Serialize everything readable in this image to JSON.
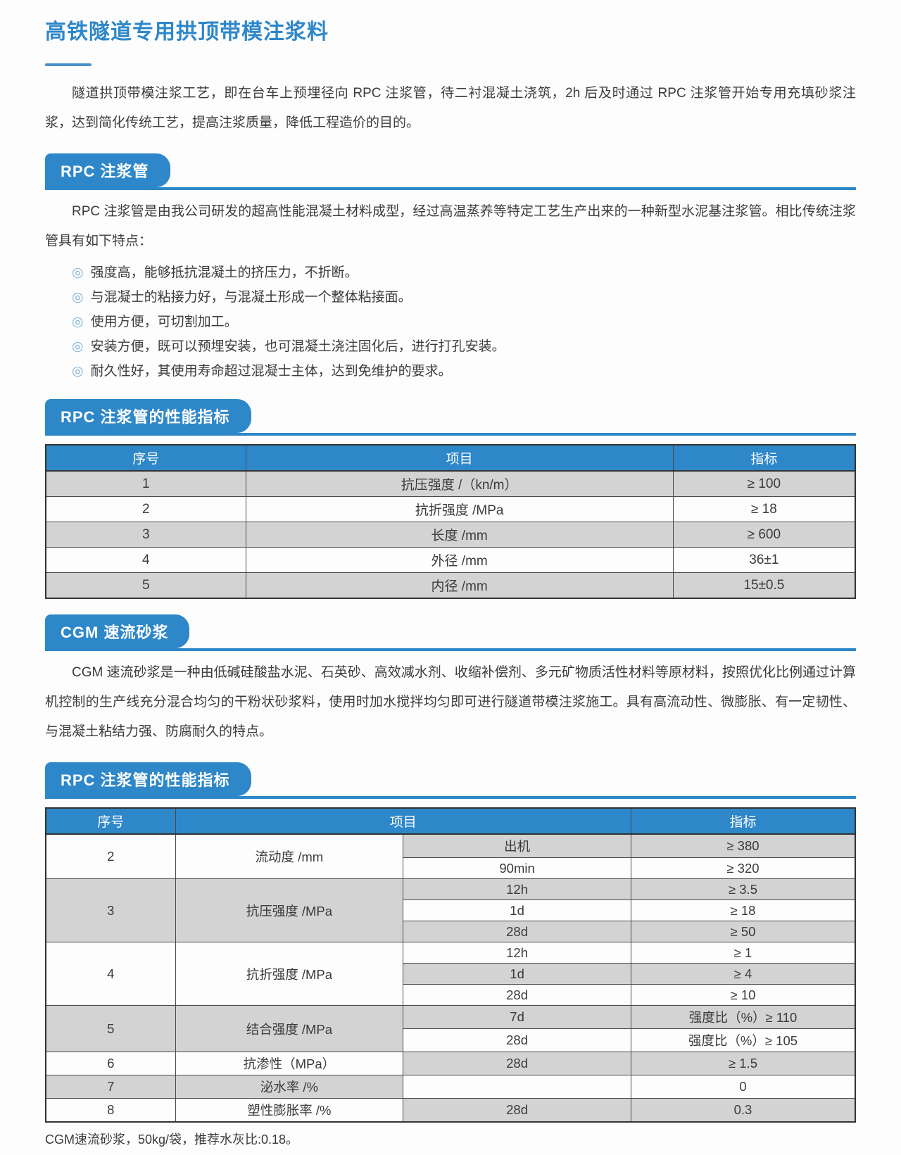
{
  "colors": {
    "accent_blue": "#2e87c9",
    "row_gray": "#d3d3d3",
    "text_color": "#3b3b3b",
    "bullet_color": "#7fb2d9"
  },
  "page": {
    "title": "高铁隧道专用拱顶带模注浆料",
    "intro": "隧道拱顶带模注浆工艺，即在台车上预埋径向 RPC 注浆管，待二衬混凝土浇筑，2h 后及时通过 RPC 注浆管开始专用充填砂浆注浆，达到简化传统工艺，提高注浆质量，降低工程造价的目的。",
    "footnote": "CGM速流砂浆，50kg/袋，推荐水灰比:0.18。"
  },
  "rpc_pipe": {
    "banner": "RPC 注浆管",
    "intro": "RPC 注浆管是由我公司研发的超高性能混凝土材料成型，经过高温蒸养等特定工艺生产出来的一种新型水泥基注浆管。相比传统注浆管具有如下特点：",
    "bullet_icon": "◎",
    "bullets": [
      "强度高，能够抵抗混凝土的挤压力，不折断。",
      "与混凝士的粘接力好，与混凝土形成一个整体粘接面。",
      "使用方便，可切割加工。",
      "安装方便，既可以预埋安装，也可混凝土浇注固化后，进行打孔安装。",
      "耐久性好，其使用寿命超过混凝士主体，达到免维护的要求。"
    ]
  },
  "rpc_table": {
    "banner": "RPC 注浆管的性能指标",
    "headers": [
      "序号",
      "项目",
      "指标"
    ],
    "rows": [
      [
        "1",
        "抗压强度 /（kn/m）",
        "≥ 100"
      ],
      [
        "2",
        "抗折强度 /MPa",
        "≥ 18"
      ],
      [
        "3",
        "长度 /mm",
        "≥ 600"
      ],
      [
        "4",
        "外径 /mm",
        "36±1"
      ],
      [
        "5",
        "内径 /mm",
        "15±0.5"
      ]
    ]
  },
  "cgm": {
    "banner": "CGM 速流砂浆",
    "intro": "CGM 速流砂浆是一种由低碱硅酸盐水泥、石英砂、高效减水剂、收缩补偿剂、多元矿物质活性材料等原材料，按照优化比例通过计算机控制的生产线充分混合均匀的干粉状砂浆料，使用时加水搅拌均匀即可进行隧道带模注浆施工。具有高流动性、微膨胀、有一定韧性、与混凝土粘结力强、防腐耐久的特点。"
  },
  "cgm_table": {
    "banner": "RPC 注浆管的性能指标",
    "headers": [
      "序号",
      "项目",
      "指标"
    ],
    "groups": [
      {
        "no": "2",
        "item": "流动度 /mm",
        "rows": [
          {
            "cond": "出机",
            "value": "≥ 380"
          },
          {
            "cond": "90min",
            "value": "≥ 320"
          }
        ]
      },
      {
        "no": "3",
        "item": "抗压强度 /MPa",
        "rows": [
          {
            "cond": "12h",
            "value": "≥ 3.5"
          },
          {
            "cond": "1d",
            "value": "≥ 18"
          },
          {
            "cond": "28d",
            "value": "≥ 50"
          }
        ]
      },
      {
        "no": "4",
        "item": "抗折强度 /MPa",
        "rows": [
          {
            "cond": "12h",
            "value": "≥ 1"
          },
          {
            "cond": "1d",
            "value": "≥ 4"
          },
          {
            "cond": "28d",
            "value": "≥ 10"
          }
        ]
      },
      {
        "no": "5",
        "item": "结合强度 /MPa",
        "rows": [
          {
            "cond": "7d",
            "value": "强度比（%）≥ 110"
          },
          {
            "cond": "28d",
            "value": "强度比（%）≥ 105"
          }
        ]
      },
      {
        "no": "6",
        "item": "抗渗性（MPa）",
        "rows": [
          {
            "cond": "28d",
            "value": "≥ 1.5"
          }
        ]
      },
      {
        "no": "7",
        "item": "泌水率 /%",
        "rows": [
          {
            "cond": "",
            "value": "0"
          }
        ]
      },
      {
        "no": "8",
        "item": "塑性膨胀率 /%",
        "rows": [
          {
            "cond": "28d",
            "value": "0.3"
          }
        ]
      }
    ]
  }
}
